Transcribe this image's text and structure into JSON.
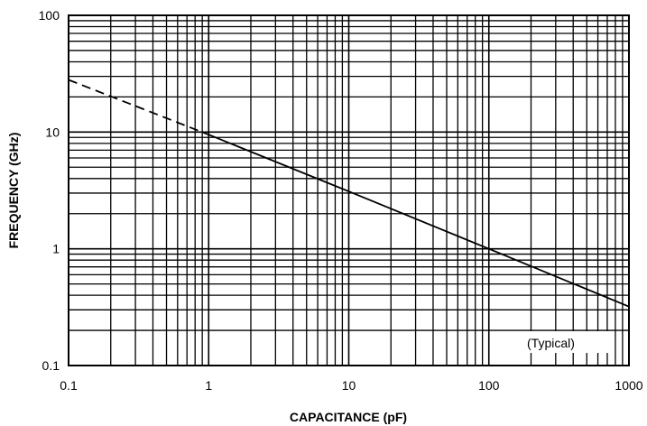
{
  "chart_data": {
    "type": "line",
    "title": "",
    "xlabel": "CAPACITANCE (pF)",
    "ylabel": "FREQUENCY (GHz)",
    "xscale": "log",
    "yscale": "log",
    "xlim": [
      0.1,
      1000
    ],
    "ylim": [
      0.1,
      100
    ],
    "grid": true,
    "x_tick_labels": [
      "0.1",
      "1",
      "10",
      "100",
      "1000"
    ],
    "y_tick_labels": [
      "0.1",
      "1",
      "10",
      "100"
    ],
    "annotation": "(Typical)",
    "series": [
      {
        "style": "dashed",
        "x": [
          0.1,
          1
        ],
        "y": [
          28,
          9.5
        ]
      },
      {
        "style": "solid",
        "x": [
          1,
          10,
          100,
          1000
        ],
        "y": [
          9.5,
          3.1,
          1.0,
          0.32
        ]
      }
    ]
  }
}
